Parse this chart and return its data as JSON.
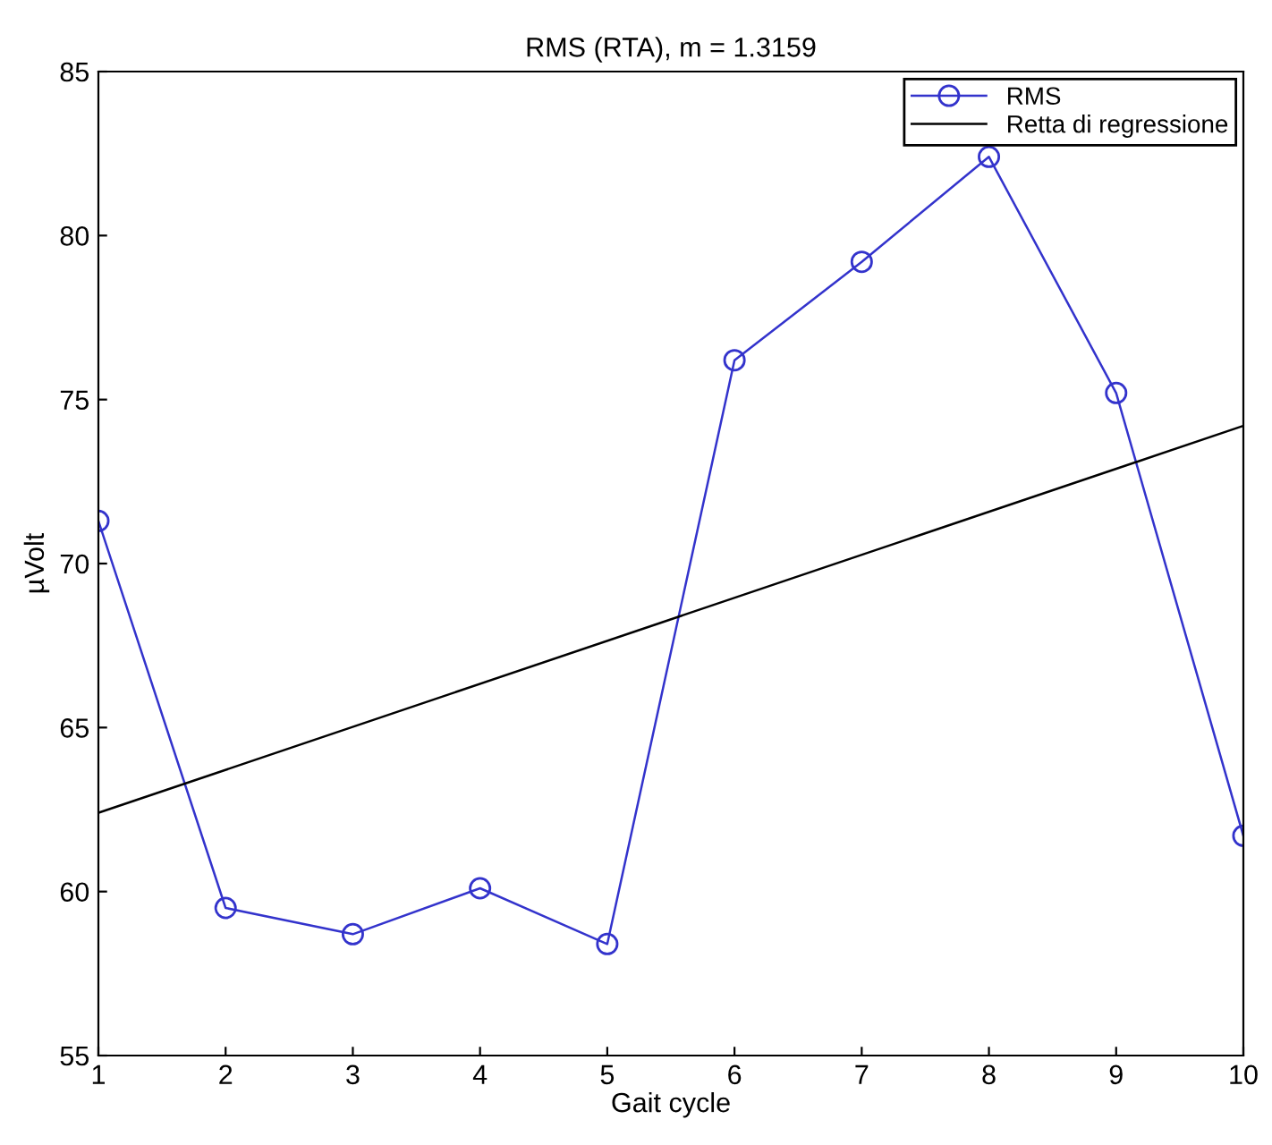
{
  "chart_data": {
    "type": "line",
    "title": "RMS (RTA), m = 1.3159",
    "xlabel": "Gait cycle",
    "ylabel": "µVolt",
    "x": [
      1,
      2,
      3,
      4,
      5,
      6,
      7,
      8,
      9,
      10
    ],
    "series": [
      {
        "name": "RMS",
        "color": "#3333cc",
        "marker": "circle",
        "values": [
          71.3,
          59.5,
          58.7,
          60.1,
          58.4,
          76.2,
          79.2,
          82.4,
          75.2,
          61.7
        ]
      },
      {
        "name": "Retta di regressione",
        "color": "#000000",
        "type": "line",
        "marker": "none",
        "x": [
          1,
          10
        ],
        "values": [
          62.4,
          74.2
        ]
      }
    ],
    "xlim": [
      1,
      10
    ],
    "xticks": [
      1,
      2,
      3,
      4,
      5,
      6,
      7,
      8,
      9,
      10
    ],
    "ylim": [
      55,
      85
    ],
    "yticks": [
      55,
      60,
      65,
      70,
      75,
      80,
      85
    ],
    "grid": false,
    "legend": "top right"
  }
}
